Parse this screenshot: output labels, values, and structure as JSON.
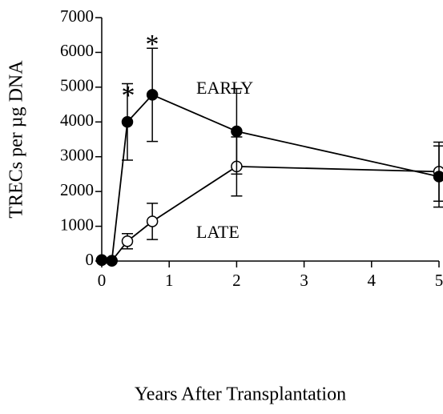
{
  "chart_data": {
    "type": "line",
    "x_label": "Years After Transplantation",
    "y_label": "TRECs per µg DNA",
    "annotations": [
      "EARLY",
      "LATE",
      "*",
      "*"
    ],
    "xlim": [
      0,
      5
    ],
    "ylim": [
      0,
      7000
    ],
    "xticks": [
      0,
      1,
      2,
      3,
      4,
      5
    ],
    "yticks": [
      0,
      1000,
      2000,
      3000,
      4000,
      5000,
      6000,
      7000
    ],
    "grid": false,
    "series": [
      {
        "name": "EARLY",
        "color": "#000000",
        "marker": "filled",
        "x": [
          0,
          0.15,
          0.38,
          0.75,
          2,
          5
        ],
        "values": [
          30,
          10,
          4000,
          4780,
          3730,
          2430
        ],
        "errors": [
          0,
          0,
          1100,
          1340,
          1230,
          880
        ]
      },
      {
        "name": "LATE",
        "color": "#000000",
        "marker": "open",
        "x": [
          0,
          0.15,
          0.38,
          0.75,
          2,
          5
        ],
        "values": [
          30,
          10,
          570,
          1140,
          2720,
          2570
        ],
        "errors": [
          0,
          0,
          220,
          520,
          850,
          850
        ]
      }
    ]
  }
}
